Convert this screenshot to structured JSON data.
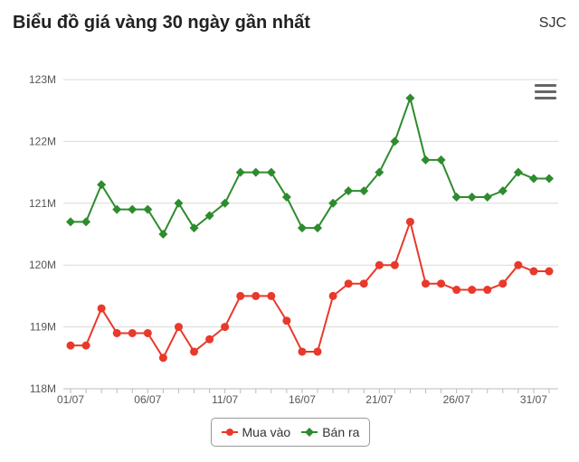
{
  "header": {
    "title": "Biểu đồ giá vàng 30 ngày gần nhất",
    "brand": "SJC"
  },
  "menu": {
    "icon": "hamburger-menu-icon"
  },
  "colors": {
    "buy": "#e8392b",
    "sell": "#2e8b2e",
    "grid": "#d9d9d9",
    "axis_text": "#555555"
  },
  "chart_data": {
    "type": "line",
    "title": "Biểu đồ giá vàng 30 ngày gần nhất",
    "xlabel": "",
    "ylabel": "",
    "x": [
      "01/07",
      "02/07",
      "03/07",
      "04/07",
      "05/07",
      "06/07",
      "07/07",
      "08/07",
      "09/07",
      "10/07",
      "11/07",
      "12/07",
      "13/07",
      "14/07",
      "15/07",
      "16/07",
      "17/07",
      "18/07",
      "19/07",
      "20/07",
      "21/07",
      "22/07",
      "23/07",
      "24/07",
      "25/07",
      "26/07",
      "27/07",
      "28/07",
      "29/07",
      "30/07",
      "31/07",
      "01/08"
    ],
    "x_tick_labels": [
      "01/07",
      "06/07",
      "11/07",
      "16/07",
      "21/07",
      "26/07",
      "31/07"
    ],
    "ylim": [
      118,
      123
    ],
    "y_tick_values": [
      118,
      119,
      120,
      121,
      122,
      123
    ],
    "y_tick_labels": [
      "118M",
      "119M",
      "120M",
      "121M",
      "122M",
      "123M"
    ],
    "y_unit": "M",
    "grid": true,
    "legend_position": "bottom-center",
    "series": [
      {
        "name": "Mua vào",
        "color": "#e8392b",
        "values": [
          118.7,
          118.7,
          119.3,
          118.9,
          118.9,
          118.9,
          118.5,
          119.0,
          118.6,
          118.8,
          119.0,
          119.5,
          119.5,
          119.5,
          119.1,
          118.6,
          118.6,
          119.5,
          119.7,
          119.7,
          120.0,
          120.0,
          120.7,
          119.7,
          119.7,
          119.6,
          119.6,
          119.6,
          119.7,
          120.0,
          119.9,
          119.9
        ]
      },
      {
        "name": "Bán ra",
        "color": "#2e8b2e",
        "values": [
          120.7,
          120.7,
          121.3,
          120.9,
          120.9,
          120.9,
          120.5,
          121.0,
          120.6,
          120.8,
          121.0,
          121.5,
          121.5,
          121.5,
          121.1,
          120.6,
          120.6,
          121.0,
          121.2,
          121.2,
          121.5,
          122.0,
          122.7,
          121.7,
          121.7,
          121.1,
          121.1,
          121.1,
          121.2,
          121.5,
          121.4,
          121.4
        ]
      }
    ]
  }
}
